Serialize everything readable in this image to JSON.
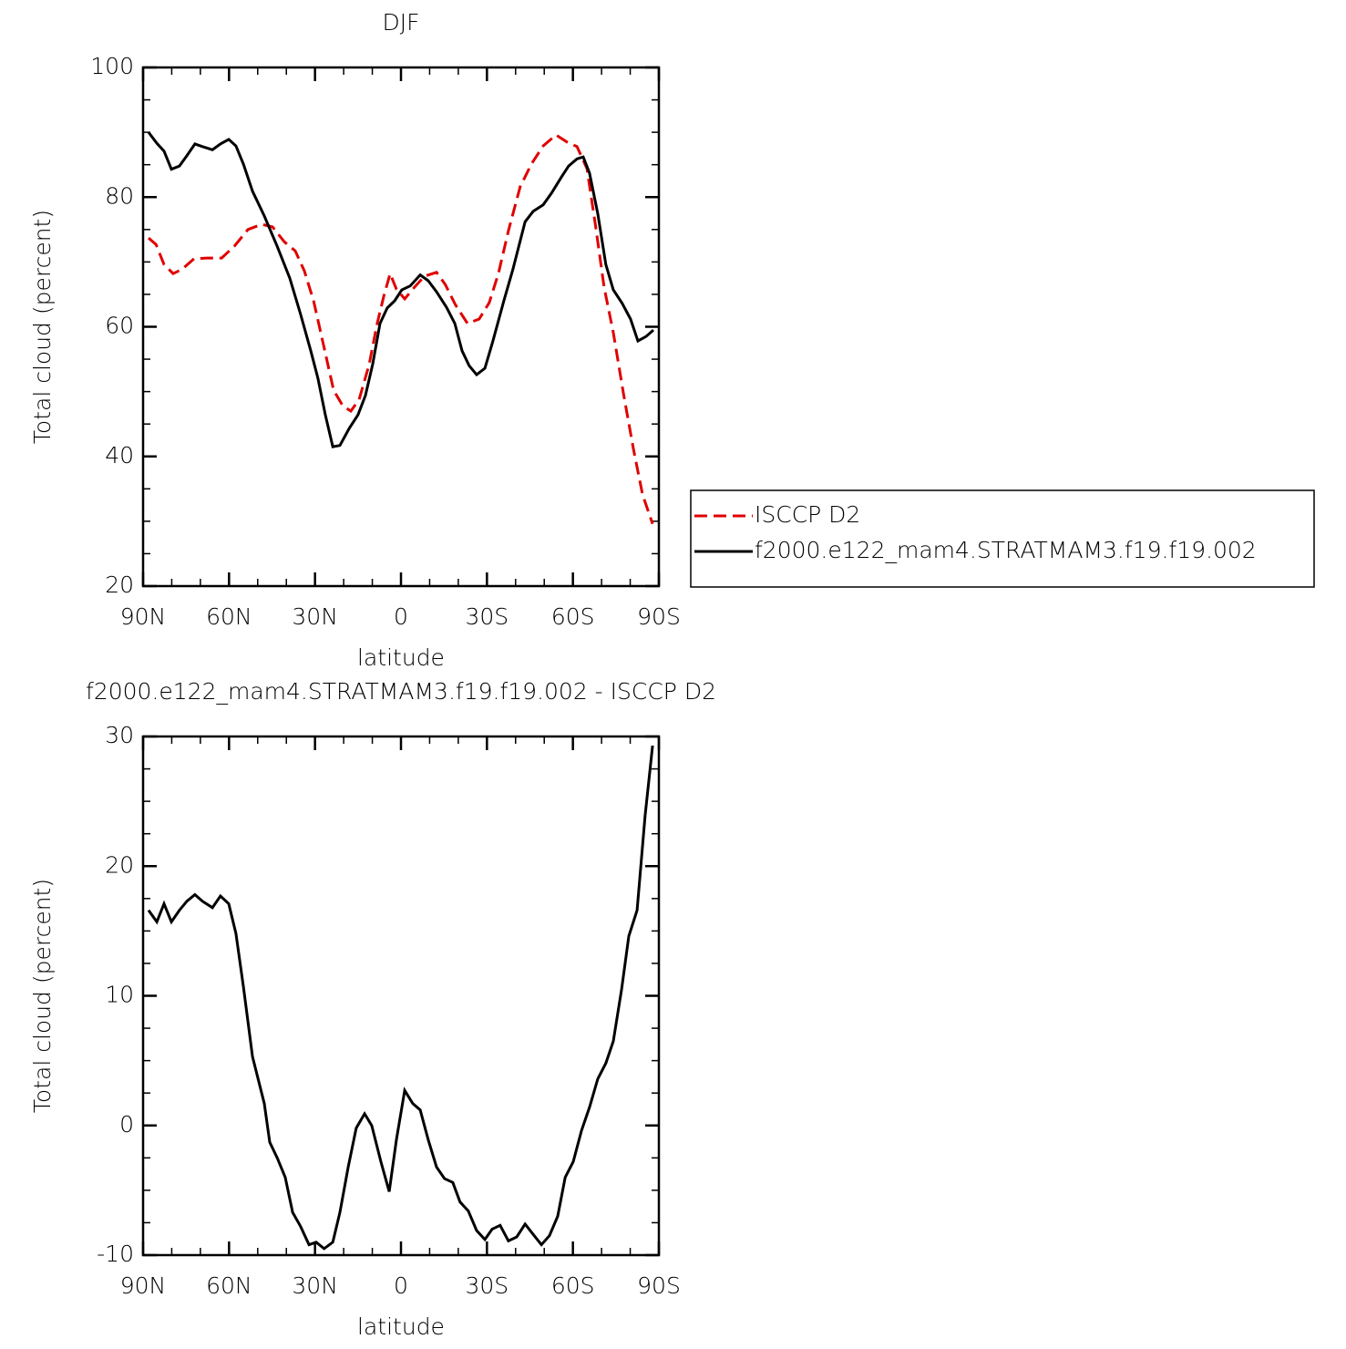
{
  "chart_data": [
    {
      "type": "line",
      "title": "DJF",
      "xlabel": "latitude",
      "ylabel": "Total cloud (percent)",
      "xlim": [
        90,
        -90
      ],
      "ylim": [
        20,
        100
      ],
      "xticks": [
        {
          "value": 90,
          "label": "90N"
        },
        {
          "value": 60,
          "label": "60N"
        },
        {
          "value": 30,
          "label": "30N"
        },
        0,
        {
          "value": -30,
          "label": "30S"
        },
        {
          "value": -60,
          "label": "60S"
        },
        {
          "value": -90,
          "label": "90S"
        }
      ],
      "yticks": [
        20,
        40,
        60,
        80,
        100
      ],
      "series": [
        {
          "name": "ISCCP D2",
          "color": "#e00000",
          "dashed": true,
          "x": [
            88.1,
            85.5,
            82.7,
            79.5,
            76.3,
            72.2,
            67.7,
            62.6,
            58.2,
            53.4,
            48.6,
            44.8,
            40.7,
            36.9,
            33.7,
            30.5,
            27.3,
            23.5,
            20.3,
            17.5,
            14.6,
            11.1,
            8.3,
            6.0,
            3.8,
            1.6,
            -1.3,
            -4.7,
            -8.2,
            -12.4,
            -15.5,
            -19.0,
            -23.2,
            -27.3,
            -30.8,
            -34.0,
            -37.5,
            -41.6,
            -45.5,
            -49.6,
            -54.1,
            -57.9,
            -61.4,
            -64.9,
            -68.0,
            -70.9,
            -74.1,
            -77.6,
            -81.1,
            -84.3,
            -87.8
          ],
          "values": [
            73.7,
            72.7,
            69.6,
            68.2,
            68.9,
            70.5,
            70.6,
            70.6,
            72.4,
            75.0,
            75.8,
            75.4,
            73.1,
            71.7,
            68.6,
            64.0,
            57.7,
            50.2,
            47.8,
            47.0,
            48.8,
            54.2,
            60.5,
            64.7,
            68.2,
            65.8,
            64.3,
            66.1,
            67.8,
            68.4,
            66.5,
            63.4,
            60.5,
            61.2,
            63.7,
            68.2,
            74.8,
            81.6,
            85.1,
            87.9,
            89.6,
            88.5,
            87.8,
            84.4,
            75.3,
            66.1,
            59.1,
            49.8,
            41.2,
            34.1,
            29.6
          ]
        },
        {
          "name": "f2000.e122_mam4.STRATMAM3.f19.f19.002",
          "color": "#000000",
          "dashed": false,
          "x": [
            88.1,
            85.2,
            82.7,
            80.1,
            77.3,
            74.7,
            71.9,
            69.3,
            65.8,
            63.0,
            60.1,
            57.6,
            55.0,
            51.8,
            47.7,
            43.2,
            38.8,
            35.0,
            31.5,
            29.0,
            26.4,
            23.8,
            21.3,
            18.1,
            15.0,
            12.4,
            9.9,
            7.3,
            4.8,
            2.2,
            -0.3,
            -3.2,
            -6.7,
            -9.5,
            -12.4,
            -15.9,
            -18.8,
            -21.3,
            -23.8,
            -26.4,
            -29.3,
            -32.1,
            -35.9,
            -39.1,
            -43.3,
            -46.1,
            -49.6,
            -52.5,
            -56.0,
            -58.5,
            -61.4,
            -63.6,
            -65.8,
            -68.7,
            -71.5,
            -74.1,
            -77.2,
            -80.1,
            -82.7,
            -85.5,
            -88.1
          ],
          "values": [
            90.0,
            88.3,
            87.1,
            84.3,
            84.8,
            86.4,
            88.2,
            87.8,
            87.3,
            88.2,
            88.9,
            87.9,
            85.1,
            80.9,
            77.1,
            72.4,
            67.5,
            61.9,
            56.3,
            52.1,
            46.4,
            41.5,
            41.7,
            44.3,
            46.4,
            49.4,
            54.2,
            60.5,
            62.9,
            64.0,
            65.7,
            66.3,
            68.0,
            67.1,
            65.4,
            63.0,
            60.5,
            56.3,
            54.0,
            52.6,
            53.6,
            57.8,
            64.0,
            68.9,
            76.2,
            77.8,
            78.8,
            80.6,
            83.1,
            84.8,
            85.9,
            86.2,
            83.7,
            77.4,
            69.6,
            65.7,
            63.6,
            61.2,
            57.8,
            58.5,
            59.5
          ]
        }
      ]
    },
    {
      "type": "line",
      "title": "f2000.e122_mam4.STRATMAM3.f19.f19.002 - ISCCP D2",
      "xlabel": "latitude",
      "ylabel": "Total cloud (percent)",
      "xlim": [
        90,
        -90
      ],
      "ylim": [
        -10,
        30
      ],
      "xticks": [
        {
          "value": 90,
          "label": "90N"
        },
        {
          "value": 60,
          "label": "60N"
        },
        {
          "value": 30,
          "label": "30N"
        },
        0,
        {
          "value": -30,
          "label": "30S"
        },
        {
          "value": -60,
          "label": "60S"
        },
        {
          "value": -90,
          "label": "90S"
        }
      ],
      "yticks": [
        -10,
        0,
        10,
        20,
        30
      ],
      "series": [
        {
          "color": "#000000",
          "dashed": false,
          "x": [
            88.1,
            85.2,
            82.7,
            80.1,
            77.3,
            74.7,
            71.9,
            69.3,
            65.8,
            63.0,
            60.1,
            57.6,
            55.0,
            51.8,
            47.7,
            45.8,
            43.2,
            40.4,
            37.8,
            35.0,
            32.1,
            29.6,
            26.8,
            23.8,
            21.3,
            18.4,
            15.6,
            12.7,
            10.2,
            7.0,
            4.1,
            1.6,
            -1.3,
            -4.1,
            -6.7,
            -9.5,
            -12.4,
            -15.2,
            -18.1,
            -20.6,
            -23.5,
            -26.4,
            -29.3,
            -31.8,
            -34.6,
            -37.5,
            -40.4,
            -43.3,
            -46.5,
            -49.0,
            -51.8,
            -54.7,
            -57.3,
            -60.1,
            -63.0,
            -65.8,
            -68.7,
            -71.5,
            -74.1,
            -77.0,
            -79.5,
            -82.4,
            -85.2,
            -87.8
          ],
          "values": [
            16.6,
            15.7,
            17.1,
            15.7,
            16.6,
            17.3,
            17.8,
            17.3,
            16.8,
            17.7,
            17.1,
            14.8,
            10.7,
            5.3,
            1.7,
            -1.3,
            -2.5,
            -4.0,
            -6.7,
            -7.8,
            -9.2,
            -9.0,
            -9.5,
            -9.0,
            -6.7,
            -3.2,
            -0.2,
            0.9,
            0.0,
            -2.8,
            -5.1,
            -1.1,
            2.7,
            1.7,
            1.2,
            -1.1,
            -3.2,
            -4.1,
            -4.4,
            -5.9,
            -6.6,
            -8.1,
            -8.8,
            -8.0,
            -7.7,
            -8.9,
            -8.6,
            -7.6,
            -8.5,
            -9.2,
            -8.5,
            -7.0,
            -4.0,
            -2.8,
            -0.4,
            1.4,
            3.6,
            4.8,
            6.5,
            10.5,
            14.6,
            16.6,
            23.9,
            29.3
          ]
        }
      ]
    }
  ]
}
